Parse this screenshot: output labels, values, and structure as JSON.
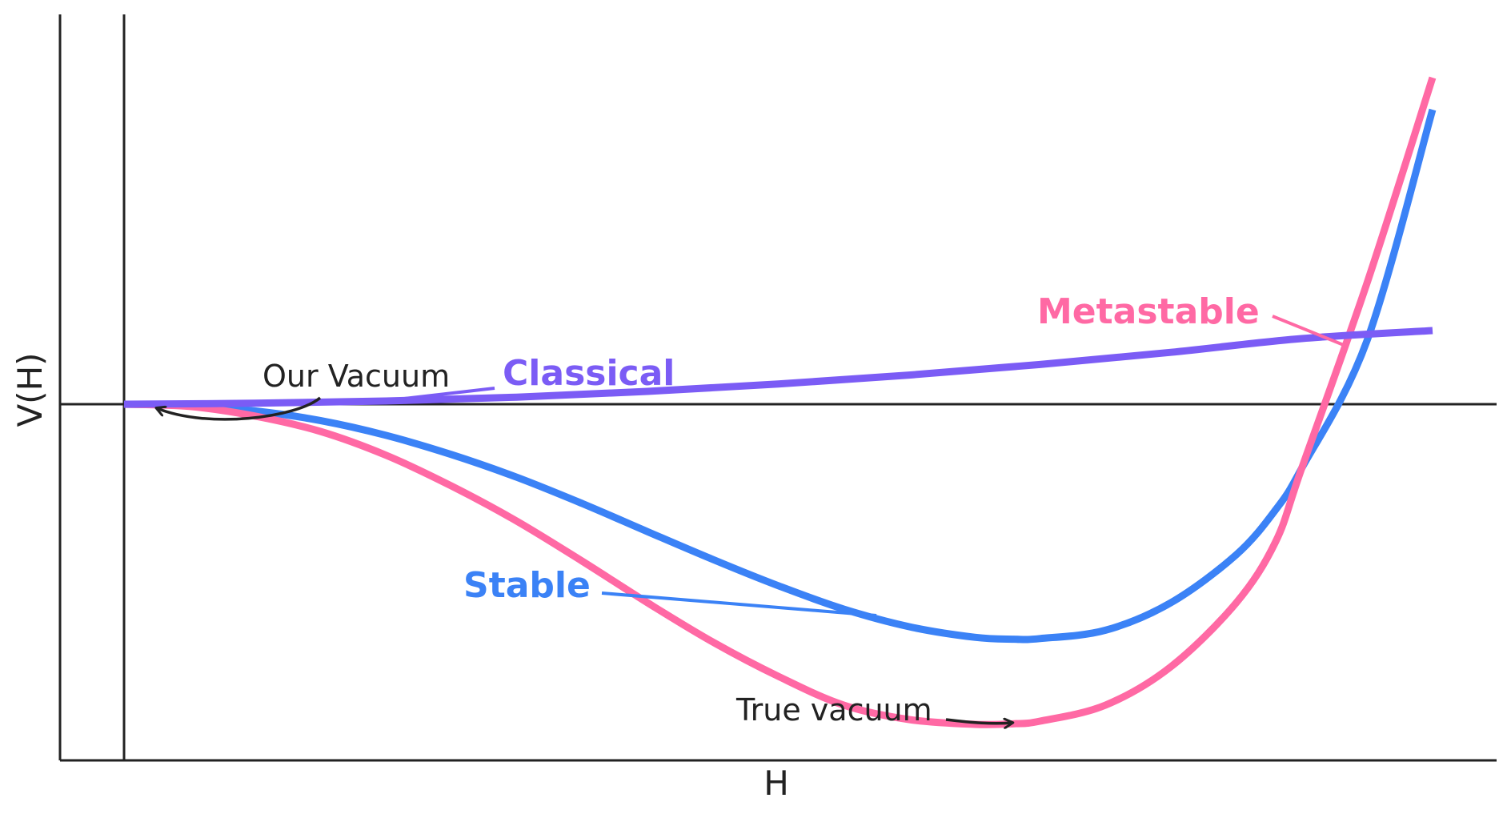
{
  "chart_data": {
    "type": "line",
    "title": "",
    "xlabel": "H",
    "ylabel": "V(H)",
    "xlim": [
      -0.05,
      1.05
    ],
    "ylim": [
      -1.12,
      1.15
    ],
    "grid": false,
    "legend": "none (series labels placed inline)",
    "x_ticks": [],
    "y_ticks": [],
    "reference_lines": {
      "horizontal": 0,
      "vertical": 0
    },
    "series": [
      {
        "name": "Classical",
        "color": "#7B5CF5",
        "x": [
          0,
          0.1,
          0.2,
          0.3,
          0.4,
          0.5,
          0.6,
          0.7,
          0.8,
          0.9,
          1.0
        ],
        "y": [
          0,
          0.003,
          0.01,
          0.022,
          0.04,
          0.063,
          0.091,
          0.124,
          0.162,
          0.205,
          0.23
        ]
      },
      {
        "name": "Stable",
        "color": "#3B82F6",
        "x": [
          0,
          0.05,
          0.1,
          0.15,
          0.2,
          0.25,
          0.3,
          0.35,
          0.4,
          0.45,
          0.5,
          0.55,
          0.6,
          0.65,
          0.68,
          0.7,
          0.75,
          0.8,
          0.85,
          0.88,
          0.9,
          0.95,
          1.0
        ],
        "y": [
          0,
          -0.004,
          -0.021,
          -0.051,
          -0.097,
          -0.157,
          -0.228,
          -0.31,
          -0.398,
          -0.485,
          -0.567,
          -0.64,
          -0.695,
          -0.728,
          -0.734,
          -0.732,
          -0.706,
          -0.62,
          -0.47,
          -0.33,
          -0.2,
          0.2,
          0.92
        ]
      },
      {
        "name": "Metastable",
        "color": "#FF69A4",
        "x": [
          0,
          0.05,
          0.1,
          0.15,
          0.2,
          0.25,
          0.3,
          0.35,
          0.4,
          0.45,
          0.5,
          0.55,
          0.6,
          0.65,
          0.68,
          0.7,
          0.75,
          0.8,
          0.85,
          0.88,
          0.9,
          0.95,
          1.0
        ],
        "y": [
          0,
          -0.007,
          -0.037,
          -0.085,
          -0.159,
          -0.255,
          -0.365,
          -0.49,
          -0.62,
          -0.743,
          -0.85,
          -0.94,
          -0.985,
          -1.0,
          -0.998,
          -0.99,
          -0.94,
          -0.82,
          -0.62,
          -0.43,
          -0.2,
          0.38,
          1.02
        ]
      }
    ],
    "annotations": [
      {
        "text": "Classical",
        "series": "Classical",
        "color": "#7B5CF5",
        "bold": true
      },
      {
        "text": "Stable",
        "series": "Stable",
        "color": "#3B82F6",
        "bold": true
      },
      {
        "text": "Metastable",
        "series": "Metastable",
        "color": "#FF69A4",
        "bold": true
      },
      {
        "text": "Our Vacuum",
        "arrow_to": [
          0.025,
          0.0
        ],
        "color": "#222222"
      },
      {
        "text": "True vacuum",
        "arrow_to": [
          0.68,
          -1.0
        ],
        "color": "#222222"
      }
    ]
  }
}
